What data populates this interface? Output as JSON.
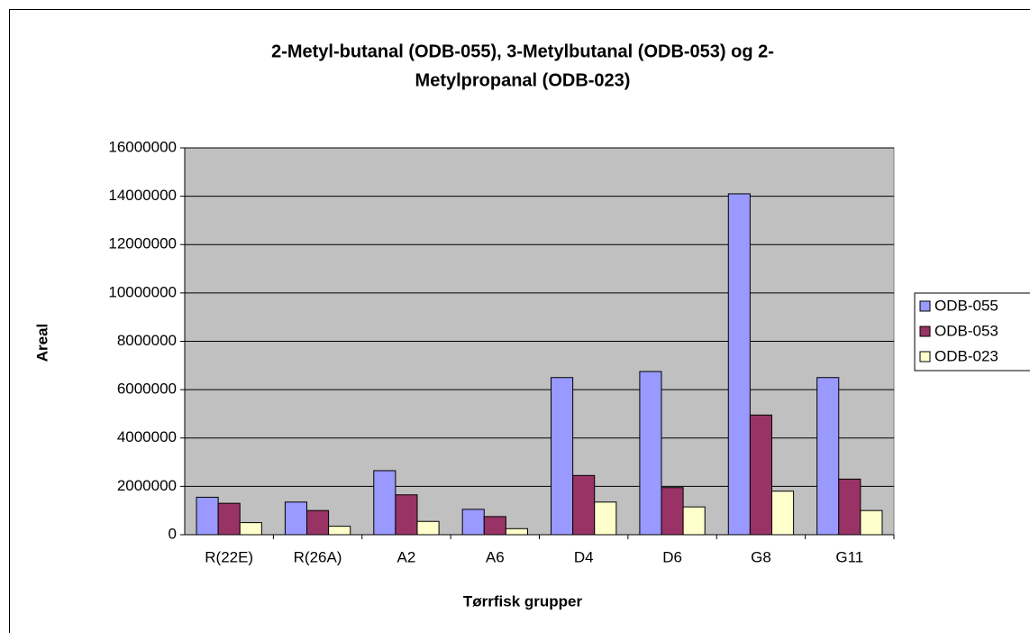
{
  "chart_data": {
    "type": "bar",
    "title": [
      "2-Metyl-butanal (ODB-055), 3-Metylbutanal (ODB-053) og 2-",
      "Metylpropanal (ODB-023)"
    ],
    "x_label": "Tørrfisk grupper",
    "y_label": "Areal",
    "categories": [
      "R(22E)",
      "R(26A)",
      "A2",
      "A6",
      "D4",
      "D6",
      "G8",
      "G11"
    ],
    "series": [
      {
        "name": "ODB-055",
        "color": "#9999ff",
        "values": [
          1550000,
          1350000,
          2650000,
          1050000,
          6500000,
          6750000,
          14100000,
          6500000
        ]
      },
      {
        "name": "ODB-053",
        "color": "#993366",
        "values": [
          1300000,
          1000000,
          1650000,
          750000,
          2450000,
          1950000,
          4950000,
          2300000
        ]
      },
      {
        "name": "ODB-023",
        "color": "#ffffcc",
        "values": [
          500000,
          350000,
          550000,
          250000,
          1350000,
          1150000,
          1800000,
          1000000
        ]
      }
    ],
    "ylim": [
      0,
      16000000
    ],
    "yticks": [
      0,
      2000000,
      4000000,
      6000000,
      8000000,
      10000000,
      12000000,
      14000000,
      16000000
    ],
    "grid": true,
    "legend": "right",
    "plot_background": "#c0c0c0"
  }
}
